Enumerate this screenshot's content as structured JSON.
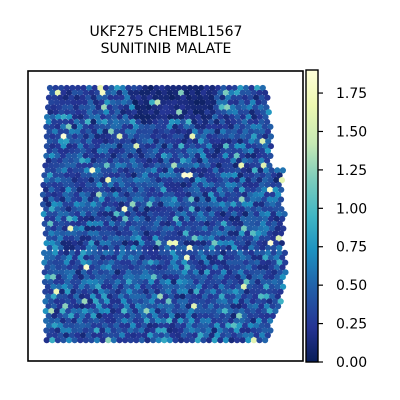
{
  "chart_data": {
    "type": "heatmap",
    "subtype": "spatial-hex-scatter",
    "title": [
      "UKF275 CHEMBL1567",
      "SUNITINIB MALATE"
    ],
    "xlabel": "",
    "ylabel": "",
    "axes_ticks_visible": false,
    "grid": false,
    "colorbar": {
      "colormap": "YlGnBu_r",
      "range": [
        0.0,
        1.9
      ],
      "ticks": [
        0.0,
        0.25,
        0.5,
        0.75,
        1.0,
        1.25,
        1.5,
        1.75
      ],
      "tick_labels": [
        "0.00",
        "0.25",
        "0.50",
        "0.75",
        "1.00",
        "1.25",
        "1.50",
        "1.75"
      ],
      "position": "right"
    },
    "value_distribution": {
      "typical_range": [
        0.0,
        0.8
      ],
      "most_common": 0.3,
      "sparse_high": [
        1.0,
        1.9
      ],
      "lower_region_higher_values": true
    },
    "colors": {
      "low": "#081d58",
      "mid": "#225ea8",
      "teal": "#1d91c0",
      "high": "#ffffd9"
    }
  }
}
